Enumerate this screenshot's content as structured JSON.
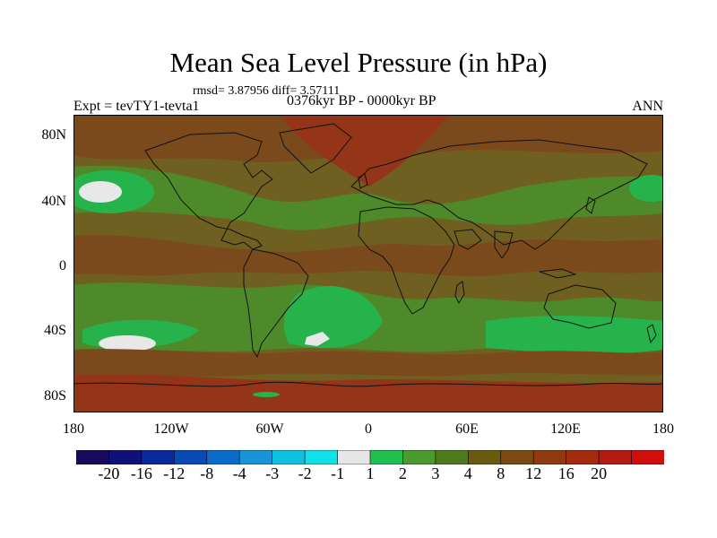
{
  "title": "Mean Sea Level Pressure (in hPa)",
  "stats": "rmsd= 3.87956 diff= 3.57111",
  "experiment": "Expt = tevTY1-tevta1",
  "period": "0376kyr BP - 0000kyr BP",
  "season": "ANN",
  "lat_labels": [
    "80N",
    "40N",
    "0",
    "40S",
    "80S"
  ],
  "lon_labels": [
    "180",
    "120W",
    "60W",
    "0",
    "60E",
    "120E",
    "180"
  ],
  "colorbar": {
    "colors": [
      "#1a0a5e",
      "#10107a",
      "#0a2a9a",
      "#0a4ab4",
      "#0a6cc8",
      "#1a94d8",
      "#10c0e0",
      "#10e0e8",
      "#e6e6e6",
      "#1ec050",
      "#4a9a30",
      "#4e7a1e",
      "#6a5a10",
      "#7a4a10",
      "#903a10",
      "#a42a10",
      "#b41a10",
      "#d00e0e"
    ],
    "labels": [
      "-20",
      "-16",
      "-12",
      "-8",
      "-4",
      "-3",
      "-2",
      "-1",
      "1",
      "2",
      "3",
      "4",
      "8",
      "12",
      "16",
      "20"
    ]
  },
  "colors": {
    "bg_olive": "#6f5f20",
    "band_brown": "#7b4a1c",
    "band_red": "#94351a",
    "green_mid": "#4f8a2a",
    "green_bright": "#27b34c",
    "white": "#e8e8e8",
    "coast": "#111111"
  }
}
